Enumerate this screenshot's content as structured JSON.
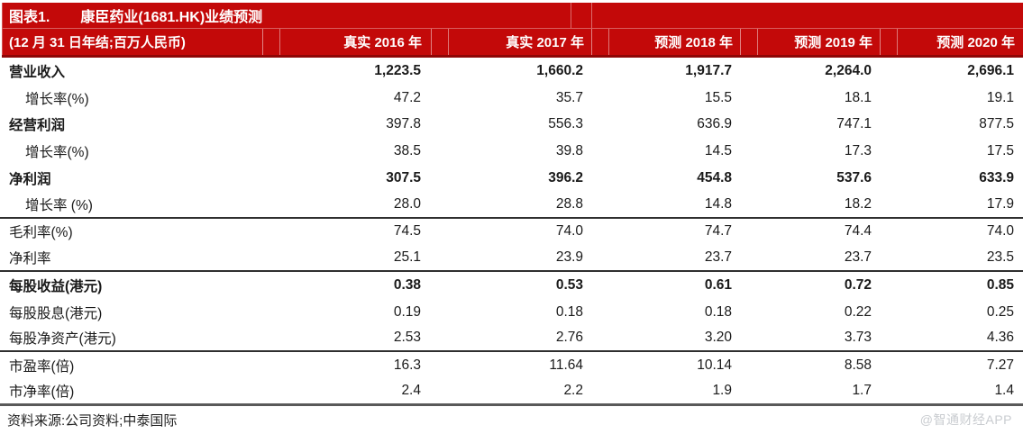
{
  "header": {
    "figure_label": "图表1.",
    "title": "康臣药业(1681.HK)业绩预测",
    "subtitle": "(12 月 31 日年结;百万人民币)",
    "columns": [
      "真实 2016 年",
      "真实 2017 年",
      "预测 2018 年",
      "预测 2019 年",
      "预测 2020 年"
    ]
  },
  "rows": [
    {
      "label": "营业收入",
      "indent": false,
      "bold_label": true,
      "bold_values": true,
      "section_end": false,
      "values": [
        "1,223.5",
        "1,660.2",
        "1,917.7",
        "2,264.0",
        "2,696.1"
      ]
    },
    {
      "label": "增长率(%)",
      "indent": true,
      "bold_label": false,
      "bold_values": false,
      "section_end": false,
      "values": [
        "47.2",
        "35.7",
        "15.5",
        "18.1",
        "19.1"
      ]
    },
    {
      "label": "经营利润",
      "indent": false,
      "bold_label": true,
      "bold_values": false,
      "section_end": false,
      "values": [
        "397.8",
        "556.3",
        "636.9",
        "747.1",
        "877.5"
      ]
    },
    {
      "label": "增长率(%)",
      "indent": true,
      "bold_label": false,
      "bold_values": false,
      "section_end": false,
      "values": [
        "38.5",
        "39.8",
        "14.5",
        "17.3",
        "17.5"
      ]
    },
    {
      "label": "净利润",
      "indent": false,
      "bold_label": true,
      "bold_values": true,
      "section_end": false,
      "values": [
        "307.5",
        "396.2",
        "454.8",
        "537.6",
        "633.9"
      ]
    },
    {
      "label": "增长率 (%)",
      "indent": true,
      "bold_label": false,
      "bold_values": false,
      "section_end": true,
      "values": [
        "28.0",
        "28.8",
        "14.8",
        "18.2",
        "17.9"
      ]
    },
    {
      "label": "毛利率(%)",
      "indent": false,
      "bold_label": false,
      "bold_values": false,
      "section_end": false,
      "values": [
        "74.5",
        "74.0",
        "74.7",
        "74.4",
        "74.0"
      ]
    },
    {
      "label": "净利率",
      "indent": false,
      "bold_label": false,
      "bold_values": false,
      "section_end": true,
      "values": [
        "25.1",
        "23.9",
        "23.7",
        "23.7",
        "23.5"
      ]
    },
    {
      "label": "每股收益(港元)",
      "indent": false,
      "bold_label": true,
      "bold_values": true,
      "section_end": false,
      "values": [
        "0.38",
        "0.53",
        "0.61",
        "0.72",
        "0.85"
      ]
    },
    {
      "label": "每股股息(港元)",
      "indent": false,
      "bold_label": false,
      "bold_values": false,
      "section_end": false,
      "values": [
        "0.19",
        "0.18",
        "0.18",
        "0.22",
        "0.25"
      ]
    },
    {
      "label": "每股净资产(港元)",
      "indent": false,
      "bold_label": false,
      "bold_values": false,
      "section_end": true,
      "values": [
        "2.53",
        "2.76",
        "3.20",
        "3.73",
        "4.36"
      ]
    },
    {
      "label": "市盈率(倍)",
      "indent": false,
      "bold_label": false,
      "bold_values": false,
      "section_end": false,
      "values": [
        "16.3",
        "11.64",
        "10.14",
        "8.58",
        "7.27"
      ]
    },
    {
      "label": "市净率(倍)",
      "indent": false,
      "bold_label": false,
      "bold_values": false,
      "section_end": true,
      "values": [
        "2.4",
        "2.2",
        "1.9",
        "1.7",
        "1.4"
      ]
    }
  ],
  "footer": {
    "source": "资料来源:公司资料;中泰国际",
    "watermark": "@智通财经APP"
  },
  "colors": {
    "header_red": "#c30909",
    "header_edge_red": "#8f0606",
    "section_line": "#2f2f2f",
    "bottom_line": "#595959",
    "watermark_gray": "#c9ccd0"
  }
}
